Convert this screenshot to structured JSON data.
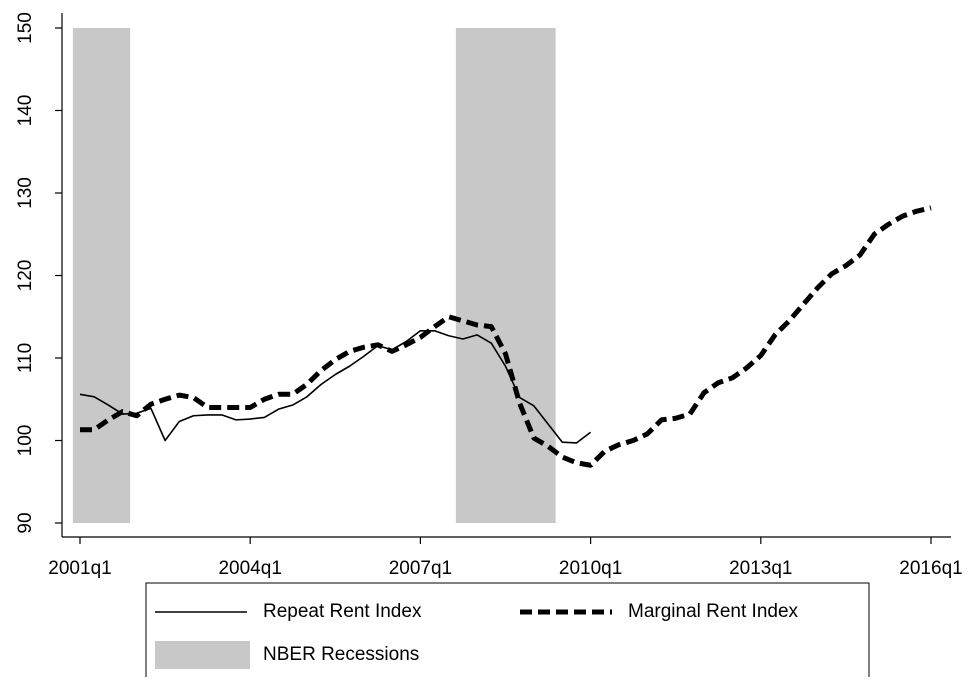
{
  "chart_data": {
    "type": "line",
    "categories": [
      "2001q1",
      null,
      null,
      null,
      null,
      null,
      null,
      null,
      null,
      null,
      null,
      null,
      "2004q1",
      null,
      null,
      null,
      null,
      null,
      null,
      null,
      null,
      null,
      null,
      null,
      "2007q1",
      null,
      null,
      null,
      null,
      null,
      null,
      null,
      null,
      null,
      null,
      null,
      "2010q1",
      null,
      null,
      null,
      null,
      null,
      null,
      null,
      null,
      null,
      null,
      null,
      "2013q1",
      null,
      null,
      null,
      null,
      null,
      null,
      null,
      null,
      null,
      null,
      null,
      "2016q1"
    ],
    "series": [
      {
        "name": "Repeat Rent Index",
        "type": "line",
        "dash": false,
        "color": "#000000",
        "values": [
          105.6,
          105.3,
          104.3,
          103.2,
          103.3,
          103.9,
          100,
          102.3,
          103,
          103.1,
          103.1,
          102.5,
          102.6,
          102.8,
          103.8,
          104.3,
          105.3,
          106.8,
          108,
          109,
          110.2,
          111.5,
          111,
          112,
          113.3,
          113.3,
          112.7,
          112.3,
          112.8,
          111.8,
          109,
          105.2,
          104.2,
          102,
          99.8,
          99.7,
          101,
          null,
          null,
          null,
          null,
          null,
          null,
          null,
          null,
          null,
          null,
          null,
          null,
          null,
          null,
          null,
          null,
          null,
          null,
          null,
          null,
          null,
          null,
          null,
          null
        ]
      },
      {
        "name": "Marginal Rent Index",
        "type": "line",
        "dash": true,
        "color": "#000000",
        "values": [
          101.3,
          101.3,
          102.5,
          103.5,
          103,
          104.4,
          105,
          105.5,
          105.2,
          104,
          104,
          104,
          104,
          105,
          105.6,
          105.6,
          106.8,
          108.5,
          109.8,
          110.8,
          111.3,
          111.6,
          110.8,
          111.6,
          112.5,
          113.8,
          115,
          114.5,
          114,
          113.8,
          110.5,
          104.5,
          100.3,
          99.3,
          98,
          97.3,
          97,
          98.7,
          99.5,
          100,
          100.8,
          102.5,
          102.7,
          103.2,
          105.8,
          107,
          107.6,
          108.8,
          110.3,
          112.8,
          114.5,
          116.5,
          118.5,
          120.2,
          121.2,
          122.5,
          125,
          126.2,
          127.2,
          127.8,
          128.2
        ]
      },
      {
        "name": "NBER Recessions",
        "type": "bar",
        "color": "#c8c8c8",
        "values": [
          150,
          150,
          150,
          150,
          null,
          null,
          null,
          null,
          null,
          null,
          null,
          null,
          null,
          null,
          null,
          null,
          null,
          null,
          null,
          null,
          null,
          null,
          null,
          null,
          null,
          null,
          null,
          150,
          150,
          150,
          150,
          150,
          150,
          150,
          null,
          null,
          null,
          null,
          null,
          null,
          null,
          null,
          null,
          null,
          null,
          null,
          null,
          null,
          null,
          null,
          null,
          null,
          null,
          null,
          null,
          null,
          null,
          null,
          null,
          null,
          null
        ]
      }
    ],
    "ylim": [
      90,
      150
    ],
    "yticks": [
      90,
      100,
      110,
      120,
      130,
      140,
      150
    ],
    "grid": false
  }
}
